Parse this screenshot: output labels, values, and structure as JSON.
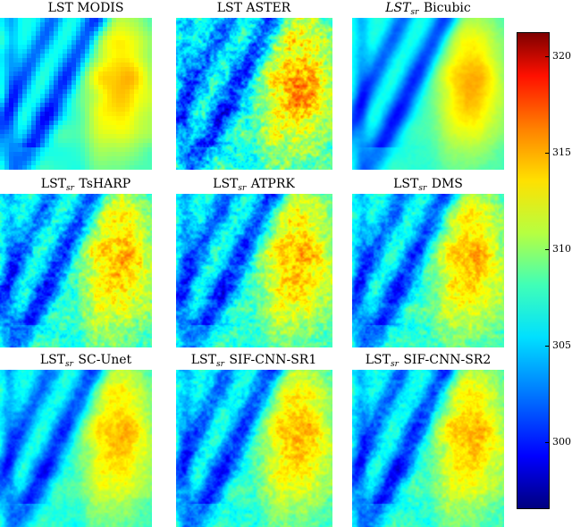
{
  "panels": [
    {
      "title": "LST MODIS"
    },
    {
      "title": "LST ASTER"
    },
    {
      "title_main": "LST",
      "title_sub": "sr",
      "title_rest": " Bicubic"
    },
    {
      "title_main": "LST",
      "title_sub": "sr",
      "title_rest": " TsHARP"
    },
    {
      "title_main": "LST",
      "title_sub": "sr",
      "title_rest": " ATPRK"
    },
    {
      "title_main": "LST",
      "title_sub": "sr",
      "title_rest": " DMS"
    },
    {
      "title_main": "LST",
      "title_sub": "sr",
      "title_rest": " SC-Unet"
    },
    {
      "title_main": "LST",
      "title_sub": "sr",
      "title_rest": " SIF-CNN-SR1"
    },
    {
      "title_main": "LST",
      "title_sub": "sr",
      "title_rest": " SIF-CNN-SR2"
    }
  ],
  "colorbar": {
    "colormap": "jet",
    "range": [
      296,
      322
    ],
    "ticks": [
      "320",
      "315",
      "310",
      "305",
      "300"
    ]
  }
}
